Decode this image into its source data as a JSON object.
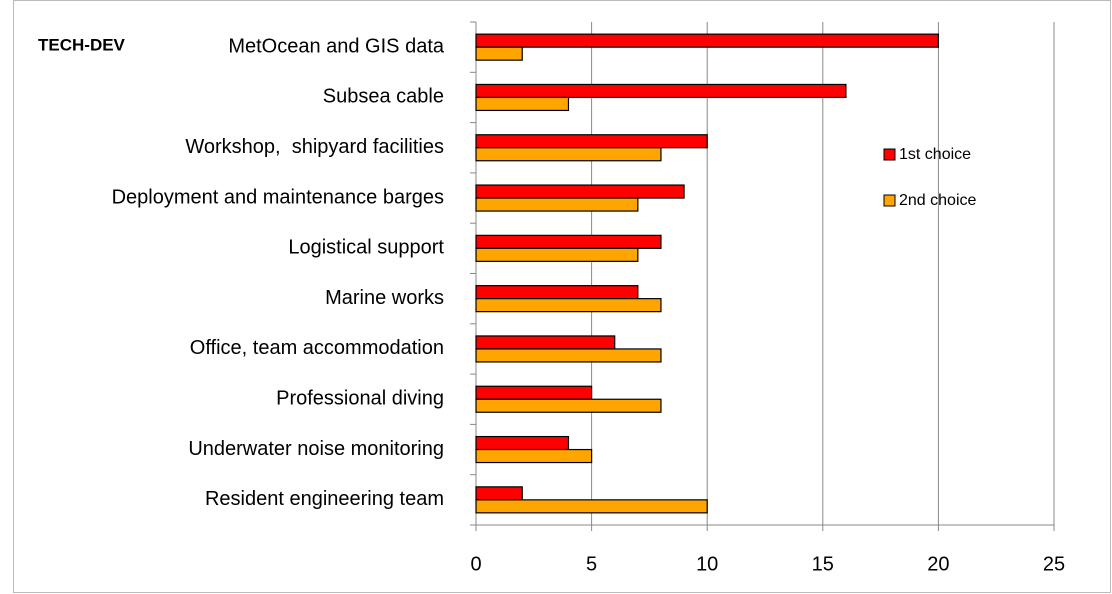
{
  "chart_data": {
    "type": "barh",
    "title": "TECH-DEV",
    "categories": [
      "MetOcean and GIS data",
      "Subsea cable",
      "Workshop,  shipyard facilities",
      "Deployment and maintenance barges",
      "Logistical support",
      "Marine works",
      "Office, team accommodation",
      "Professional diving",
      "Underwater noise monitoring",
      "Resident engineering team"
    ],
    "series": [
      {
        "name": "1st choice",
        "color": "#ff0000",
        "values": [
          20,
          16,
          10,
          9,
          8,
          7,
          6,
          5,
          4,
          2
        ]
      },
      {
        "name": "2nd choice",
        "color": "#ffa500",
        "values": [
          2,
          4,
          8,
          7,
          7,
          8,
          8,
          8,
          5,
          10
        ]
      }
    ],
    "xlim": [
      0,
      25
    ],
    "xticks": [
      0,
      5,
      10,
      15,
      20,
      25
    ],
    "grid": true,
    "legend": "right"
  }
}
